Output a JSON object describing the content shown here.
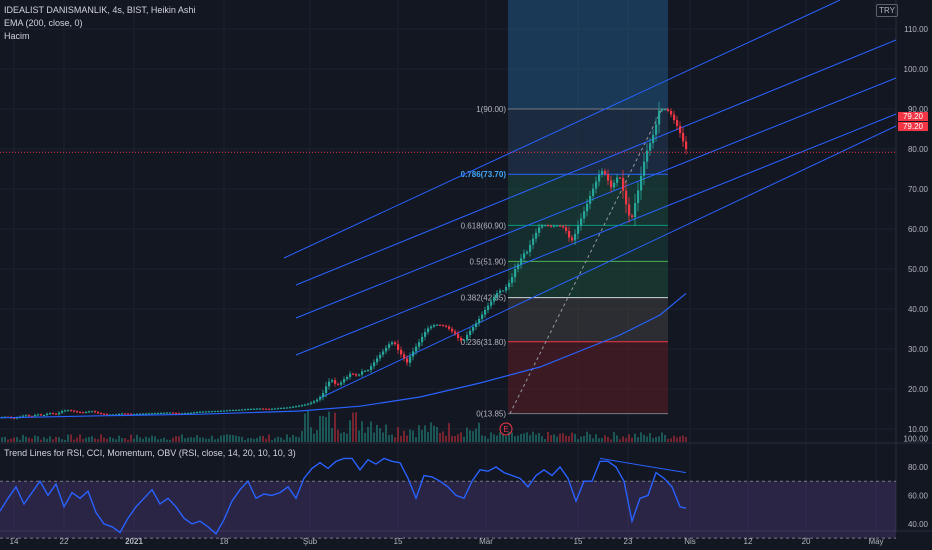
{
  "legend": {
    "line1": "IDEALIST DANISMANLIK, 4s, BIST, Heikin Ashi",
    "line2": "EMA (200, close, 0)",
    "line3": "Hacim",
    "indicator": "Trend Lines for RSI, CCI, Momentum, OBV (RSI, close, 14, 20, 10, 10, 3)"
  },
  "currency_badge": "TRY",
  "last_price_tags": [
    "79.20",
    "79.20"
  ],
  "event_marker": "E",
  "colors": {
    "background": "#131722",
    "up": "#26a69a",
    "down": "#f23645",
    "channel": "#2962ff",
    "ema": "#2962ff",
    "rsi": "#2962ff",
    "rsi_band": "#7e57c2"
  },
  "chart_data": [
    {
      "type": "candlestick",
      "style": "Heikin Ashi",
      "x_ticks": [
        "14",
        "22",
        "2021",
        "18",
        "Şub",
        "15",
        "Mar",
        "15",
        "23",
        "Nis",
        "12",
        "20",
        "May"
      ],
      "y_ticks": [
        "10.00",
        "20.00",
        "30.00",
        "40.00",
        "50.00",
        "60.00",
        "70.00",
        "80.00",
        "90.00",
        "100.00",
        "110.00"
      ],
      "ylim": [
        6,
        111
      ],
      "price_path": [
        [
          0,
          12.9
        ],
        [
          6,
          13.1
        ],
        [
          12,
          12.6
        ],
        [
          18,
          13.0
        ],
        [
          24,
          13.5
        ],
        [
          30,
          13.1
        ],
        [
          36,
          13.7
        ],
        [
          42,
          13.4
        ],
        [
          48,
          14.0
        ],
        [
          55,
          13.7
        ],
        [
          62,
          14.6
        ],
        [
          68,
          14.7
        ],
        [
          75,
          14.3
        ],
        [
          82,
          14.1
        ],
        [
          90,
          14.5
        ],
        [
          98,
          13.9
        ],
        [
          106,
          13.6
        ],
        [
          114,
          13.6
        ],
        [
          122,
          13.9
        ],
        [
          130,
          13.7
        ],
        [
          138,
          13.8
        ],
        [
          148,
          13.9
        ],
        [
          158,
          14.0
        ],
        [
          168,
          14.1
        ],
        [
          178,
          13.9
        ],
        [
          188,
          14.0
        ],
        [
          198,
          14.3
        ],
        [
          208,
          14.4
        ],
        [
          218,
          14.5
        ],
        [
          228,
          14.7
        ],
        [
          238,
          14.8
        ],
        [
          248,
          15.0
        ],
        [
          258,
          15.1
        ],
        [
          268,
          15.0
        ],
        [
          278,
          15.2
        ],
        [
          288,
          15.4
        ],
        [
          298,
          15.8
        ],
        [
          306,
          16.2
        ],
        [
          312,
          16.8
        ],
        [
          318,
          17.6
        ],
        [
          322,
          19.0
        ],
        [
          326,
          21.2
        ],
        [
          330,
          22.5
        ],
        [
          334,
          21.3
        ],
        [
          338,
          21.0
        ],
        [
          342,
          22.3
        ],
        [
          346,
          23.0
        ],
        [
          350,
          24.1
        ],
        [
          354,
          23.3
        ],
        [
          358,
          23.6
        ],
        [
          362,
          24.7
        ],
        [
          366,
          24.4
        ],
        [
          370,
          25.7
        ],
        [
          374,
          27.0
        ],
        [
          378,
          28.3
        ],
        [
          382,
          29.4
        ],
        [
          386,
          30.6
        ],
        [
          390,
          31.8
        ],
        [
          394,
          31.2
        ],
        [
          398,
          29.3
        ],
        [
          402,
          28.0
        ],
        [
          406,
          26.6
        ],
        [
          410,
          28.6
        ],
        [
          414,
          30.2
        ],
        [
          418,
          31.7
        ],
        [
          422,
          33.5
        ],
        [
          426,
          35.0
        ],
        [
          430,
          35.6
        ],
        [
          434,
          36.1
        ],
        [
          438,
          36.0
        ],
        [
          442,
          35.8
        ],
        [
          446,
          35.5
        ],
        [
          450,
          34.6
        ],
        [
          454,
          33.8
        ],
        [
          458,
          32.4
        ],
        [
          462,
          31.9
        ],
        [
          466,
          33.5
        ],
        [
          470,
          34.9
        ],
        [
          474,
          36.1
        ],
        [
          478,
          37.5
        ],
        [
          482,
          39.0
        ],
        [
          486,
          40.5
        ],
        [
          490,
          41.9
        ],
        [
          494,
          43.4
        ],
        [
          498,
          44.6
        ],
        [
          502,
          44.6
        ],
        [
          506,
          45.8
        ],
        [
          510,
          47.3
        ],
        [
          514,
          50.0
        ],
        [
          518,
          51.5
        ],
        [
          522,
          53.8
        ],
        [
          526,
          54.3
        ],
        [
          530,
          56.6
        ],
        [
          534,
          58.6
        ],
        [
          538,
          60.4
        ],
        [
          542,
          61.0
        ],
        [
          546,
          60.9
        ],
        [
          550,
          60.6
        ],
        [
          554,
          60.9
        ],
        [
          558,
          60.8
        ],
        [
          562,
          60.4
        ],
        [
          566,
          59.2
        ],
        [
          570,
          56.6
        ],
        [
          574,
          58.8
        ],
        [
          578,
          61.5
        ],
        [
          582,
          63.8
        ],
        [
          586,
          66.3
        ],
        [
          590,
          68.9
        ],
        [
          594,
          71.3
        ],
        [
          598,
          73.6
        ],
        [
          602,
          74.8
        ],
        [
          606,
          72.7
        ],
        [
          610,
          70.4
        ],
        [
          614,
          71.9
        ],
        [
          618,
          73.8
        ],
        [
          622,
          69.6
        ],
        [
          626,
          65.0
        ],
        [
          630,
          61.8
        ],
        [
          634,
          66.5
        ],
        [
          638,
          70.7
        ],
        [
          642,
          75.9
        ],
        [
          646,
          79.6
        ],
        [
          650,
          82.1
        ],
        [
          654,
          85.0
        ],
        [
          658,
          89.6
        ],
        [
          662,
          90.0
        ],
        [
          666,
          89.8
        ],
        [
          670,
          88.6
        ],
        [
          674,
          86.8
        ],
        [
          678,
          84.7
        ],
        [
          682,
          81.9
        ],
        [
          686,
          79.3
        ]
      ],
      "last_price": 79.2
    },
    {
      "type": "line",
      "name": "EMA (200, close, 0)",
      "x": [
        0,
        100,
        200,
        300,
        360,
        420,
        480,
        540,
        580,
        620,
        660,
        686
      ],
      "values": [
        12.8,
        13.3,
        13.7,
        14.5,
        15.7,
        18.0,
        21.5,
        25.5,
        29.5,
        33.5,
        38.5,
        43.9
      ]
    },
    {
      "type": "fibonacci_retracement",
      "levels": [
        {
          "ratio": "0",
          "price": 13.85,
          "label": "0(13.85)"
        },
        {
          "ratio": "0.236",
          "price": 31.8,
          "label": "0.236(31.80)"
        },
        {
          "ratio": "0.382",
          "price": 42.85,
          "label": "0.382(42.85)"
        },
        {
          "ratio": "0.5",
          "price": 51.9,
          "label": "0.5(51.90)"
        },
        {
          "ratio": "0.618",
          "price": 60.9,
          "label": "0.618(60.90)"
        },
        {
          "ratio": "0.786",
          "price": 73.7,
          "label": "0.786(73.70)"
        },
        {
          "ratio": "1",
          "price": 90.0,
          "label": "1(90.00)"
        }
      ]
    },
    {
      "type": "line",
      "name": "Trend Lines for RSI, CCI, Momentum, OBV (RSI, close, 14, 20, 10, 10, 3)",
      "y_ticks": [
        "40.00",
        "60.00",
        "80.00",
        "100.00"
      ],
      "ylim": [
        28,
        104
      ],
      "band": [
        30,
        70
      ],
      "x": [
        0,
        8,
        16,
        24,
        32,
        40,
        48,
        56,
        64,
        72,
        80,
        88,
        96,
        104,
        112,
        120,
        128,
        136,
        144,
        152,
        160,
        168,
        176,
        184,
        192,
        200,
        208,
        216,
        224,
        232,
        240,
        248,
        256,
        264,
        272,
        280,
        288,
        296,
        304,
        312,
        320,
        328,
        336,
        344,
        352,
        360,
        368,
        376,
        384,
        392,
        400,
        408,
        416,
        424,
        432,
        440,
        448,
        456,
        464,
        472,
        480,
        488,
        496,
        504,
        512,
        520,
        528,
        536,
        544,
        552,
        560,
        568,
        576,
        584,
        592,
        600,
        608,
        616,
        624,
        632,
        640,
        648,
        656,
        664,
        672,
        680,
        686
      ],
      "values": [
        49,
        58,
        66,
        54,
        62,
        70,
        60,
        68,
        52,
        62,
        58,
        63,
        48,
        40,
        38,
        34,
        44,
        52,
        58,
        64,
        54,
        58,
        52,
        44,
        40,
        42,
        38,
        33,
        43,
        56,
        64,
        70,
        58,
        61,
        60,
        62,
        66,
        58,
        72,
        79,
        83,
        79,
        84,
        86,
        86,
        78,
        85,
        82,
        86,
        84,
        83,
        72,
        58,
        74,
        73,
        70,
        66,
        60,
        58,
        70,
        78,
        77,
        80,
        76,
        74,
        72,
        66,
        74,
        78,
        74,
        80,
        72,
        56,
        70,
        70,
        84,
        84,
        80,
        70,
        42,
        58,
        60,
        76,
        72,
        66,
        52,
        51
      ]
    }
  ]
}
